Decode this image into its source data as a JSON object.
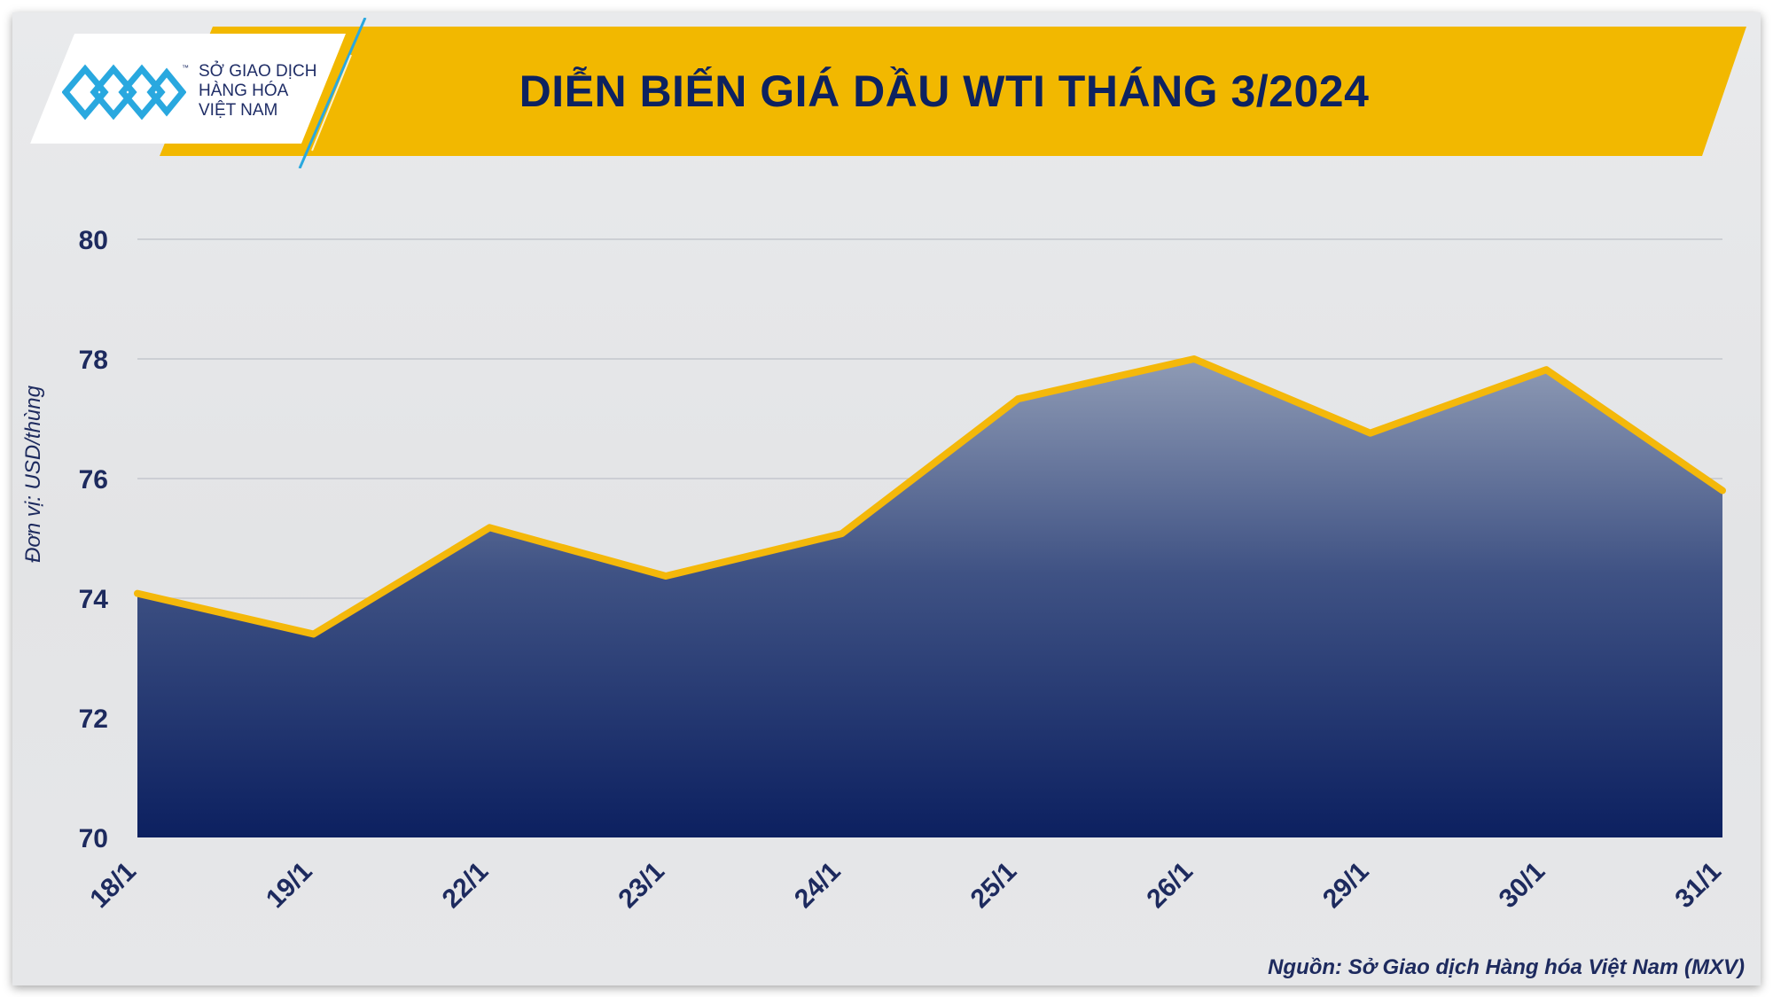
{
  "header": {
    "title": "DIỄN BIẾN GIÁ DẦU WTI THÁNG 3/2024",
    "logo": {
      "line1": "SỞ GIAO DỊCH",
      "line2": "HÀNG HÓA",
      "line3": "VIỆT NAM",
      "tm": "™"
    }
  },
  "colors": {
    "banner": "#f2b800",
    "title_text": "#0d2260",
    "line": "#f4b80a",
    "area_top": "#8f9bb5",
    "area_bottom": "#0c2060",
    "axis_text": "#1d2a5e",
    "logo_mark": "#29a8df"
  },
  "chart_data": {
    "type": "area",
    "title": "DIỄN BIẾN GIÁ DẦU WTI THÁNG 3/2024",
    "xlabel": "",
    "ylabel": "Đơn vị: USD/thùng",
    "categories": [
      "18/1",
      "19/1",
      "22/1",
      "23/1",
      "24/1",
      "25/1",
      "26/1",
      "29/1",
      "30/1",
      "31/1"
    ],
    "series": [
      {
        "values": [
          74.08,
          73.4,
          75.18,
          74.37,
          75.08,
          77.33,
          78.0,
          76.76,
          77.82,
          75.8
        ]
      }
    ],
    "ylim": [
      70,
      80
    ],
    "yticks": [
      "70",
      "72",
      "74",
      "76",
      "78",
      "80"
    ],
    "grid": true,
    "legend": "none"
  },
  "footer": {
    "source": "Nguồn: Sở Giao dịch Hàng hóa Việt Nam (MXV)"
  }
}
